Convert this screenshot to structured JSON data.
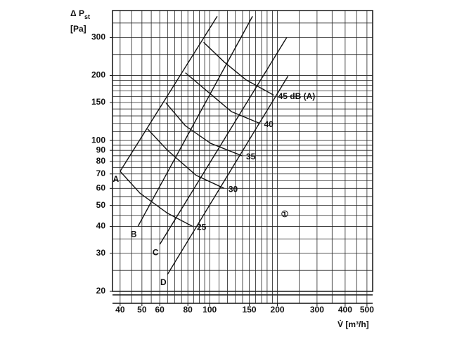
{
  "chart_data": {
    "type": "line",
    "log_x": true,
    "log_y": true,
    "x_label": "V̇ [m³/h]",
    "y_label": {
      "main": "Δ P",
      "sub": "st",
      "unit": "[Pa]"
    },
    "annotation": "①",
    "xlim": [
      37,
      530
    ],
    "ylim": [
      20,
      400
    ],
    "xticks": [
      40,
      50,
      60,
      80,
      100,
      150,
      200,
      300,
      400,
      500
    ],
    "yticks": [
      20,
      30,
      40,
      50,
      60,
      70,
      80,
      90,
      100,
      150,
      200,
      300
    ],
    "xgrid": [
      40,
      45,
      50,
      55,
      60,
      65,
      70,
      75,
      80,
      85,
      90,
      95,
      100,
      110,
      120,
      130,
      140,
      150,
      160,
      170,
      180,
      190,
      200,
      250,
      300,
      350,
      400,
      450,
      500
    ],
    "ygrid": [
      20,
      25,
      30,
      35,
      40,
      45,
      50,
      55,
      60,
      65,
      70,
      75,
      80,
      85,
      90,
      95,
      100,
      110,
      120,
      130,
      140,
      150,
      160,
      170,
      180,
      190,
      200,
      250,
      300,
      350,
      400
    ],
    "color": "#111111",
    "series": [
      {
        "name": "A",
        "x": [
          40,
          108
        ],
        "values": [
          72,
          376
        ]
      },
      {
        "name": "B",
        "x": [
          48,
          155
        ],
        "values": [
          40,
          376
        ]
      },
      {
        "name": "C",
        "x": [
          60,
          220
        ],
        "values": [
          33,
          300
        ]
      },
      {
        "name": "D",
        "x": [
          65,
          223
        ],
        "values": [
          24,
          199
        ]
      }
    ],
    "noise_curves": [
      {
        "name": "25",
        "x": [
          40,
          49,
          65,
          84
        ],
        "values": [
          72,
          57,
          46,
          40
        ]
      },
      {
        "name": "30",
        "x": [
          53,
          65,
          87,
          116
        ],
        "values": [
          113,
          90,
          69,
          60
        ]
      },
      {
        "name": "35",
        "x": [
          64,
          78,
          101,
          139
        ],
        "values": [
          149,
          117,
          97,
          85
        ]
      },
      {
        "name": "40",
        "x": [
          78,
          101,
          125,
          167
        ],
        "values": [
          206,
          164,
          136,
          120
        ]
      },
      {
        "name": "45 dB (A)",
        "x": [
          94,
          116,
          145,
          193
        ],
        "values": [
          285,
          231,
          191,
          162
        ]
      }
    ]
  }
}
